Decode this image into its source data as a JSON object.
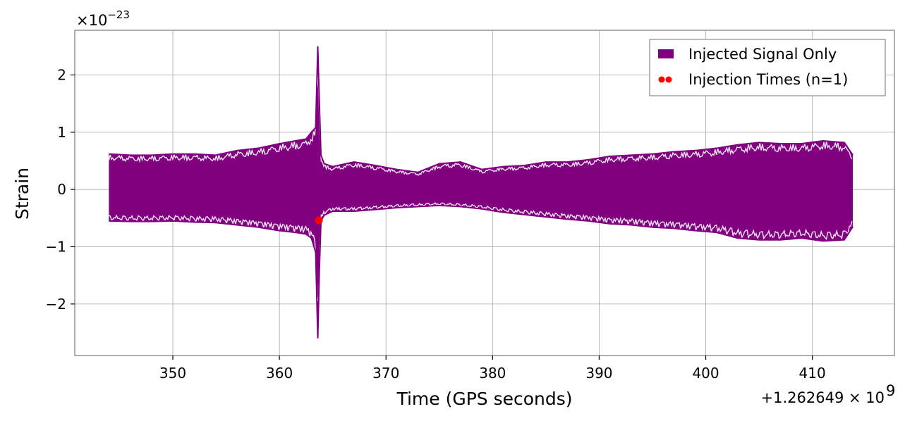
{
  "chart_data": {
    "type": "line",
    "xlabel": "Time (GPS seconds)",
    "ylabel": "Strain",
    "x_offset_label": "+1.262649 × 10",
    "x_offset_exp": "9",
    "y_scale_label": "×10",
    "y_scale_exp": "−23",
    "xlim": [
      340.8,
      417.7
    ],
    "ylim": [
      -2.9,
      2.78
    ],
    "x_ticks": [
      350,
      360,
      370,
      380,
      390,
      400,
      410
    ],
    "x_tick_labels": [
      "350",
      "360",
      "370",
      "380",
      "390",
      "400",
      "410"
    ],
    "y_ticks": [
      -2,
      -1,
      0,
      1,
      2
    ],
    "y_tick_labels": [
      "−2",
      "−1",
      "0",
      "1",
      "2"
    ],
    "grid": true,
    "legend_position": "top-right",
    "series": [
      {
        "name": "Injected Signal Only",
        "color": "#800080",
        "style": "filled-band",
        "x": [
          344.0,
          346.0,
          348.0,
          350.0,
          352.0,
          354.0,
          356.0,
          358.0,
          360.0,
          361.5,
          362.5,
          363.0,
          363.4,
          363.6,
          363.75,
          363.9,
          364.2,
          365.0,
          367.0,
          369.0,
          371.0,
          373.0,
          375.0,
          377.0,
          379.0,
          381.0,
          383.0,
          385.0,
          387.0,
          389.0,
          391.0,
          393.0,
          395.0,
          397.0,
          399.0,
          401.0,
          403.0,
          405.0,
          407.0,
          409.0,
          411.0,
          413.0,
          413.8
        ],
        "upper": [
          0.62,
          0.6,
          0.6,
          0.62,
          0.62,
          0.6,
          0.68,
          0.72,
          0.8,
          0.85,
          0.88,
          1.0,
          1.08,
          2.5,
          1.5,
          0.6,
          0.45,
          0.4,
          0.48,
          0.42,
          0.35,
          0.3,
          0.45,
          0.48,
          0.35,
          0.4,
          0.42,
          0.48,
          0.48,
          0.52,
          0.58,
          0.6,
          0.62,
          0.66,
          0.68,
          0.72,
          0.78,
          0.82,
          0.8,
          0.8,
          0.85,
          0.82,
          0.6
        ],
        "lower": [
          -0.55,
          -0.56,
          -0.56,
          -0.55,
          -0.57,
          -0.58,
          -0.62,
          -0.66,
          -0.72,
          -0.75,
          -0.78,
          -0.85,
          -1.1,
          -2.6,
          -1.4,
          -0.55,
          -0.45,
          -0.38,
          -0.38,
          -0.35,
          -0.32,
          -0.3,
          -0.28,
          -0.3,
          -0.34,
          -0.4,
          -0.44,
          -0.48,
          -0.52,
          -0.55,
          -0.6,
          -0.62,
          -0.66,
          -0.68,
          -0.72,
          -0.75,
          -0.85,
          -0.88,
          -0.88,
          -0.85,
          -0.9,
          -0.88,
          -0.65
        ]
      },
      {
        "name": "Injection Times (n=1)",
        "color": "#ff0000",
        "style": "points",
        "x": [
          363.7
        ],
        "y": [
          -0.54
        ]
      }
    ]
  }
}
